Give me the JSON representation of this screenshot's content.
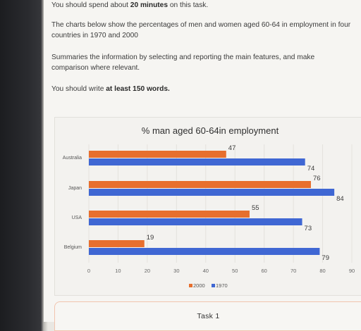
{
  "task": {
    "line1_prefix": "You should spend about ",
    "line1_bold": "20 minutes",
    "line1_suffix": " on this task.",
    "para2_line1": "The charts below show the percentages of men and women aged 60-64 in employment in four",
    "para2_line2": "countries in 1970 and 2000",
    "para3_line1": "Summaries the information by selecting and reporting the main features, and make",
    "para3_line2": "comparison where relevant.",
    "para4_prefix": "You should write ",
    "para4_bold": "at least 150 words.",
    "footer_label": "Task 1"
  },
  "colors": {
    "series_2000": "#e76f2e",
    "series_1970": "#3f67d3"
  },
  "chart_data": {
    "type": "bar",
    "orientation": "horizontal",
    "title": "% man aged 60-64in employment",
    "categories": [
      "Australia",
      "Japan",
      "USA",
      "Belgium"
    ],
    "series": [
      {
        "name": "2000",
        "values": [
          47,
          76,
          55,
          19
        ]
      },
      {
        "name": "1970",
        "values": [
          74,
          84,
          73,
          79
        ]
      }
    ],
    "xlim": [
      0,
      90
    ],
    "xticks": [
      0,
      10,
      20,
      30,
      40,
      50,
      60,
      70,
      80,
      90
    ],
    "grid": true,
    "legend": "bottom"
  }
}
